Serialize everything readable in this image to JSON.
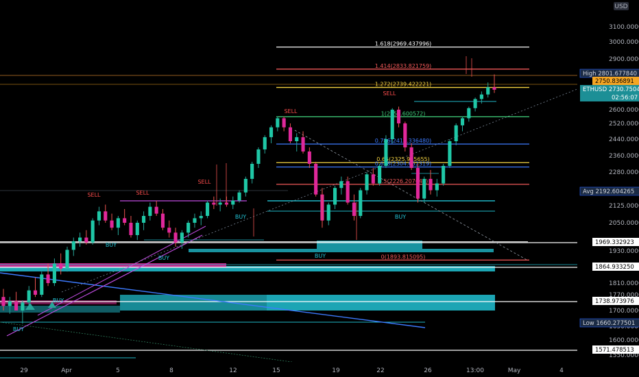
{
  "currency": "USD",
  "colors": {
    "up": "#26a69a",
    "down": "#ef5350",
    "bull_body": "#1fc7a6",
    "bear_body": "#e0289a",
    "zone": "#1fb8c8",
    "trend": "#3d7bff",
    "wedge": "#c04be0",
    "fib_high": "#ffffff",
    "fib_red": "#f55a5a",
    "fib_green": "#3fcf7a",
    "fib_blue": "#3d7bff",
    "fib_yellow": "#f5d442"
  },
  "chart_data": {
    "type": "candlestick",
    "symbol": "ETHUSD",
    "x_ticks": [
      "29",
      "Apr",
      "5",
      "8",
      "12",
      "15",
      "19",
      "22",
      "26",
      "13:00",
      "May",
      "4"
    ],
    "y_ticks": [
      "3100.000000",
      "3000.000000",
      "2900.000000",
      "2750.836891",
      "2600.000000",
      "2520.000000",
      "2440.000000",
      "2360.000000",
      "2280.000000",
      "2125.000000",
      "2050.000000",
      "1970.000000",
      "1930.000000",
      "1810.000000",
      "1770.000000",
      "1700.000000",
      "1650.000000",
      "1600.000000",
      "1550.000000"
    ],
    "ylim": [
      1540,
      3160
    ],
    "price_tags": [
      {
        "label": "High",
        "value": "2801.677840",
        "style": "box"
      },
      {
        "label": "",
        "value": "2750.836891",
        "style": "gold"
      },
      {
        "label": "ETHUSD",
        "value": "2730.750401",
        "extra": "02:56:07",
        "style": "teal"
      },
      {
        "label": "Avg",
        "value": "2192.604265",
        "style": "box"
      },
      {
        "label": "",
        "value": "1969.332923",
        "style": "white"
      },
      {
        "label": "",
        "value": "1864.933250",
        "style": "white"
      },
      {
        "label": "",
        "value": "1738.973976",
        "style": "white"
      },
      {
        "label": "Low",
        "value": "1660.277501",
        "style": "box"
      },
      {
        "label": "",
        "value": "1571.478513",
        "style": "white"
      }
    ],
    "fib_levels": [
      {
        "label": "1.618(2969.437996)",
        "value": 2969.44,
        "color": "#ffffff"
      },
      {
        "label": "1.414(2833.821759)",
        "value": 2833.82,
        "color": "#f55a5a"
      },
      {
        "label": "1.272(2739.422221)",
        "value": 2739.42,
        "color": "#f5d442"
      },
      {
        "label": "1(2558.600572)",
        "value": 2558.6,
        "color": "#3fcf7a"
      },
      {
        "label": "0.786(2416.336480)",
        "value": 2416.34,
        "color": "#3d7bff"
      },
      {
        "label": "0.65(2325.925655)",
        "value": 2325.93,
        "color": "#f5d442"
      },
      {
        "label": "0.618(2304.652319)",
        "value": 2304.65,
        "color": "#3d7bff"
      },
      {
        "label": "0.5(2226.207047)",
        "value": 2226.21,
        "color": "#f55a5a"
      },
      {
        "label": "0(1893.815095)",
        "value": 1893.82,
        "color": "#f55a5a"
      }
    ],
    "signals": [
      {
        "text": "SELL",
        "type": "sell"
      },
      {
        "text": "SELL",
        "type": "sell"
      },
      {
        "text": "SELL",
        "type": "sell"
      },
      {
        "text": "SELL",
        "type": "sell"
      },
      {
        "text": "SELL",
        "type": "sell"
      },
      {
        "text": "BUY",
        "type": "buy"
      },
      {
        "text": "BUY",
        "type": "buy"
      },
      {
        "text": "BUY",
        "type": "buy"
      },
      {
        "text": "BUY",
        "type": "buy"
      },
      {
        "text": "BUY",
        "type": "buy"
      },
      {
        "text": "BUY",
        "type": "buy"
      },
      {
        "text": "BUY",
        "type": "buy"
      }
    ],
    "candles": [
      [
        1760,
        1790,
        1700,
        1720
      ],
      [
        1720,
        1760,
        1690,
        1740
      ],
      [
        1740,
        1780,
        1710,
        1700
      ],
      [
        1700,
        1745,
        1660,
        1735
      ],
      [
        1735,
        1800,
        1720,
        1785
      ],
      [
        1785,
        1830,
        1760,
        1770
      ],
      [
        1770,
        1850,
        1760,
        1840
      ],
      [
        1840,
        1880,
        1800,
        1810
      ],
      [
        1810,
        1900,
        1800,
        1880
      ],
      [
        1880,
        1920,
        1840,
        1860
      ],
      [
        1860,
        1950,
        1850,
        1935
      ],
      [
        1935,
        1990,
        1910,
        1975
      ],
      [
        1975,
        2010,
        1950,
        1990
      ],
      [
        1990,
        2020,
        1960,
        1970
      ],
      [
        1970,
        2070,
        1960,
        2060
      ],
      [
        2060,
        2120,
        2040,
        2100
      ],
      [
        2100,
        2130,
        2050,
        2060
      ],
      [
        2060,
        2090,
        2020,
        2030
      ],
      [
        2030,
        2080,
        2000,
        2070
      ],
      [
        2070,
        2110,
        2040,
        2050
      ],
      [
        2050,
        2080,
        1990,
        2000
      ],
      [
        2000,
        2060,
        1980,
        2050
      ],
      [
        2050,
        2100,
        2020,
        2080
      ],
      [
        2080,
        2140,
        2060,
        2120
      ],
      [
        2120,
        2150,
        2080,
        2090
      ],
      [
        2090,
        2110,
        2020,
        2030
      ],
      [
        2030,
        2060,
        1990,
        2010
      ],
      [
        2010,
        2030,
        1950,
        1970
      ],
      [
        1970,
        2020,
        1940,
        2010
      ],
      [
        2010,
        2060,
        1990,
        2050
      ],
      [
        2050,
        2090,
        2030,
        2070
      ],
      [
        2070,
        2100,
        2040,
        2080
      ],
      [
        2080,
        2150,
        2070,
        2140
      ],
      [
        2140,
        2170,
        2110,
        2130
      ],
      [
        2130,
        2160,
        2100,
        2140
      ],
      [
        2140,
        2170,
        2120,
        2130
      ],
      [
        2130,
        2170,
        2110,
        2150
      ],
      [
        2150,
        2200,
        2140,
        2190
      ],
      [
        2190,
        2260,
        2170,
        2250
      ],
      [
        2250,
        2330,
        2230,
        2320
      ],
      [
        2320,
        2400,
        2300,
        2390
      ],
      [
        2390,
        2460,
        2370,
        2450
      ],
      [
        2450,
        2510,
        2420,
        2500
      ],
      [
        2500,
        2560,
        2480,
        2550
      ],
      [
        2550,
        2560,
        2480,
        2500
      ],
      [
        2500,
        2520,
        2420,
        2430
      ],
      [
        2430,
        2470,
        2380,
        2450
      ],
      [
        2450,
        2480,
        2370,
        2380
      ],
      [
        2380,
        2400,
        2300,
        2320
      ],
      [
        2320,
        2330,
        2170,
        2180
      ],
      [
        2180,
        2210,
        2030,
        2060
      ],
      [
        2060,
        2140,
        2040,
        2130
      ],
      [
        2130,
        2220,
        2110,
        2210
      ],
      [
        2210,
        2260,
        2180,
        2240
      ],
      [
        2240,
        2260,
        2130,
        2140
      ],
      [
        2140,
        2180,
        2060,
        2080
      ],
      [
        2080,
        2210,
        2070,
        2200
      ],
      [
        2200,
        2280,
        2180,
        2270
      ],
      [
        2270,
        2300,
        2220,
        2230
      ],
      [
        2230,
        2320,
        2220,
        2310
      ],
      [
        2310,
        2460,
        2300,
        2440
      ],
      [
        2440,
        2610,
        2420,
        2600
      ],
      [
        2600,
        2620,
        2500,
        2520
      ],
      [
        2520,
        2530,
        2380,
        2400
      ],
      [
        2400,
        2420,
        2290,
        2300
      ],
      [
        2300,
        2320,
        2140,
        2160
      ],
      [
        2160,
        2260,
        2140,
        2250
      ],
      [
        2250,
        2290,
        2180,
        2200
      ],
      [
        2200,
        2250,
        2170,
        2230
      ],
      [
        2230,
        2320,
        2220,
        2310
      ],
      [
        2310,
        2440,
        2300,
        2430
      ],
      [
        2430,
        2520,
        2410,
        2510
      ],
      [
        2510,
        2560,
        2480,
        2550
      ],
      [
        2550,
        2620,
        2530,
        2610
      ],
      [
        2610,
        2680,
        2590,
        2670
      ],
      [
        2670,
        2720,
        2640,
        2700
      ],
      [
        2700,
        2760,
        2680,
        2740
      ],
      [
        2740,
        2800,
        2710,
        2731
      ]
    ]
  }
}
